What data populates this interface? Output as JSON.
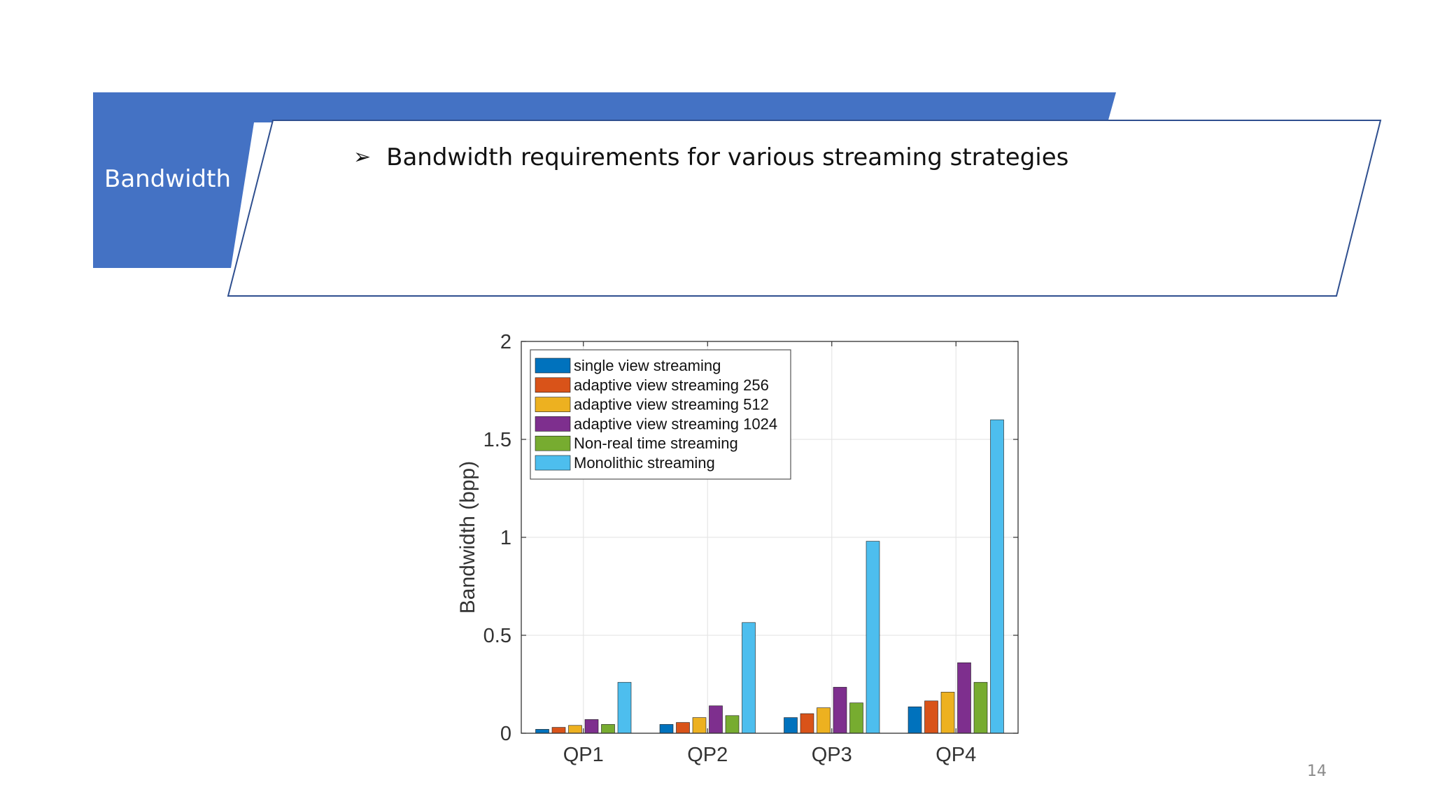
{
  "slide": {
    "section_label": "Bandwidth",
    "bullet": "Bandwidth requirements for various streaming strategies",
    "page_number": "14",
    "colors": {
      "band_blue": "#4472c4",
      "frame_border": "#2f4f8f"
    }
  },
  "chart_data": {
    "type": "bar",
    "title": "",
    "xlabel": "",
    "ylabel": "Bandwidth (bpp)",
    "ylim": [
      0,
      2
    ],
    "yticks": [
      "0",
      "0.5",
      "1",
      "1.5",
      "2"
    ],
    "categories": [
      "QP1",
      "QP2",
      "QP3",
      "QP4"
    ],
    "grid": true,
    "legend_position": "top-left",
    "series": [
      {
        "name": "single view streaming",
        "color": "#0072bd",
        "values": [
          0.02,
          0.045,
          0.08,
          0.135
        ]
      },
      {
        "name": "adaptive view streaming 256",
        "color": "#d95319",
        "values": [
          0.03,
          0.055,
          0.1,
          0.165
        ]
      },
      {
        "name": "adaptive view streaming 512",
        "color": "#edb120",
        "values": [
          0.04,
          0.08,
          0.13,
          0.21
        ]
      },
      {
        "name": "adaptive view streaming 1024",
        "color": "#7e2f8e",
        "values": [
          0.07,
          0.14,
          0.235,
          0.36
        ]
      },
      {
        "name": "Non-real time streaming",
        "color": "#77ac30",
        "values": [
          0.045,
          0.09,
          0.155,
          0.26
        ]
      },
      {
        "name": "Monolithic streaming",
        "color": "#4dbeee",
        "values": [
          0.26,
          0.565,
          0.98,
          1.6
        ]
      }
    ]
  }
}
